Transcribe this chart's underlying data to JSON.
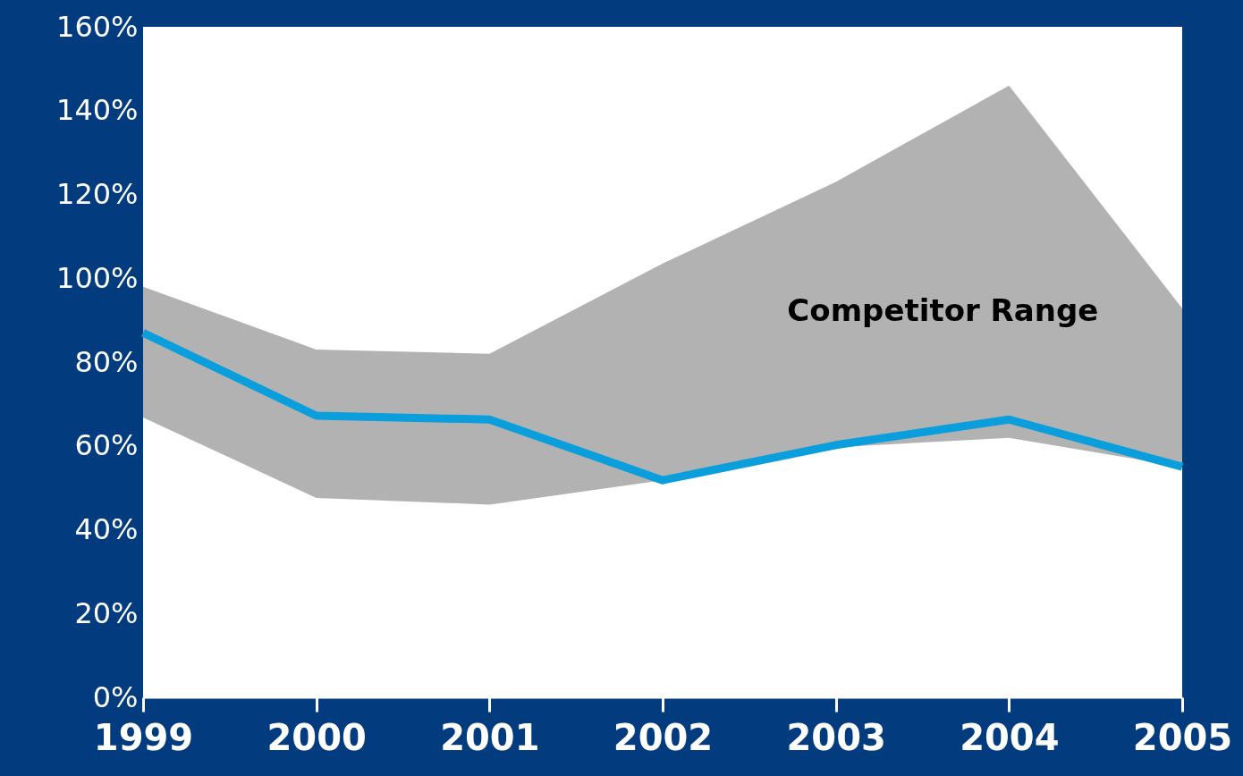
{
  "chart_data": {
    "type": "line",
    "categories": [
      "1999",
      "2000",
      "2001",
      "2002",
      "2003",
      "2004",
      "2005"
    ],
    "series": [
      {
        "type": "line",
        "color": "#0a9fdc",
        "values": [
          87,
          67.2,
          66.3,
          51.8,
          60.2,
          66.3,
          55
        ],
        "lower": [
          66.8,
          47.6,
          46,
          51.8,
          59.7,
          61.9,
          55
        ],
        "upper": [
          98,
          83,
          82,
          103.5,
          123,
          146,
          92.8
        ]
      }
    ],
    "annotations": [
      "Competitor Range"
    ],
    "ylim": [
      0,
      160
    ],
    "yticks": [
      {
        "value": 0,
        "label": "0%"
      },
      {
        "value": 20,
        "label": "20%"
      },
      {
        "value": 40,
        "label": "40%"
      },
      {
        "value": 60,
        "label": "60%"
      },
      {
        "value": 80,
        "label": "80%"
      },
      {
        "value": 100,
        "label": "100%"
      },
      {
        "value": 120,
        "label": "120%"
      },
      {
        "value": 140,
        "label": "140%"
      },
      {
        "value": 160,
        "label": "160%"
      }
    ],
    "grid": false,
    "marker": "none",
    "line_style": "solid"
  }
}
